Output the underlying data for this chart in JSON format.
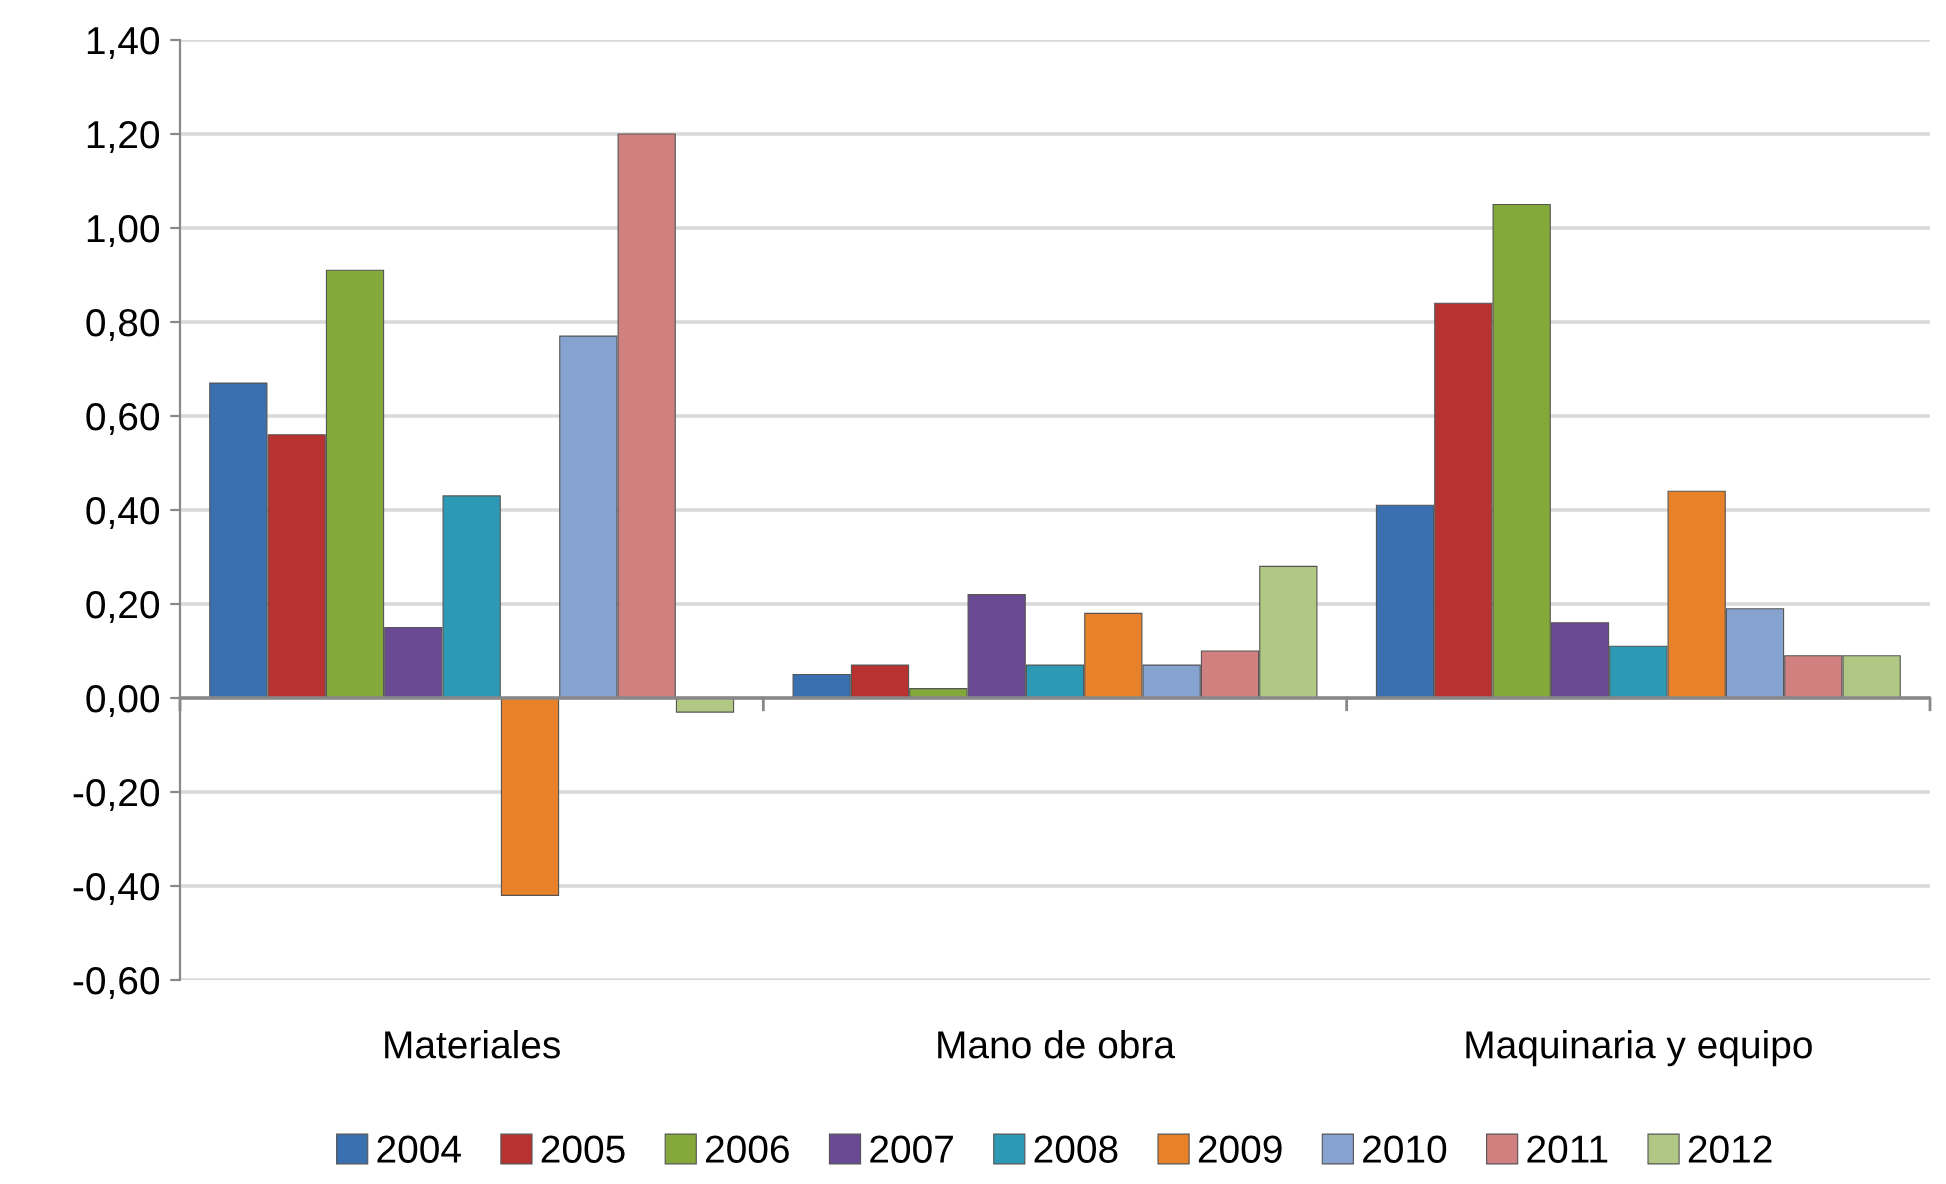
{
  "chart_data": {
    "type": "bar",
    "categories": [
      "Materiales",
      "Mano de obra",
      "Maquinaria y equipo"
    ],
    "series": [
      {
        "name": "2004",
        "color": "#3a6fb0",
        "values": [
          0.67,
          0.05,
          0.41
        ]
      },
      {
        "name": "2005",
        "color": "#b83232",
        "values": [
          0.56,
          0.07,
          0.84
        ]
      },
      {
        "name": "2006",
        "color": "#85a83a",
        "values": [
          0.91,
          0.02,
          1.05
        ]
      },
      {
        "name": "2007",
        "color": "#6a4a92",
        "values": [
          0.15,
          0.22,
          0.16
        ]
      },
      {
        "name": "2008",
        "color": "#2d9ab5",
        "values": [
          0.43,
          0.07,
          0.11
        ]
      },
      {
        "name": "2009",
        "color": "#e8822a",
        "values": [
          -0.42,
          0.18,
          0.44
        ]
      },
      {
        "name": "2010",
        "color": "#86a2cf",
        "values": [
          0.77,
          0.07,
          0.19
        ]
      },
      {
        "name": "2011",
        "color": "#d18080",
        "values": [
          1.2,
          0.1,
          0.09
        ]
      },
      {
        "name": "2012",
        "color": "#b0c884",
        "values": [
          -0.03,
          0.28,
          0.09
        ]
      }
    ],
    "ylim": [
      -0.6,
      1.4
    ],
    "yticks": [
      {
        "value": -0.6,
        "label": "-0,60"
      },
      {
        "value": -0.4,
        "label": "-0,40"
      },
      {
        "value": -0.2,
        "label": "-0,20"
      },
      {
        "value": 0,
        "label": "0,00"
      },
      {
        "value": 0.2,
        "label": "0,20"
      },
      {
        "value": 0.4,
        "label": "0,40"
      },
      {
        "value": 0.6,
        "label": "0,60"
      },
      {
        "value": 0.8,
        "label": "0,80"
      },
      {
        "value": 1.0,
        "label": "1,00"
      },
      {
        "value": 1.2,
        "label": "1,20"
      },
      {
        "value": 1.4,
        "label": "1,40"
      }
    ],
    "grid": "y",
    "legend": "bottom"
  }
}
